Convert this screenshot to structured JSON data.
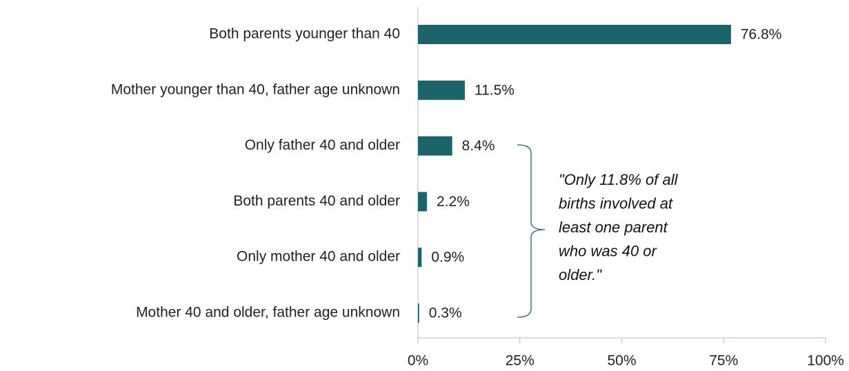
{
  "chart_data": {
    "type": "bar",
    "orientation": "horizontal",
    "categories": [
      "Both parents younger than 40",
      "Mother younger than 40, father age unknown",
      "Only father 40 and older",
      "Both parents 40 and older",
      "Only mother 40 and older",
      "Mother 40 and older, father age unknown"
    ],
    "values": [
      76.8,
      11.5,
      8.4,
      2.2,
      0.9,
      0.3
    ],
    "value_labels": [
      "76.8%",
      "11.5%",
      "8.4%",
      "2.2%",
      "0.9%",
      "0.3%"
    ],
    "color": "#1d636c",
    "xlim": [
      0,
      100
    ],
    "xticks": [
      {
        "value": 0,
        "label": "0%"
      },
      {
        "value": 25,
        "label": "25%"
      },
      {
        "value": 50,
        "label": "50%"
      },
      {
        "value": 75,
        "label": "75%"
      },
      {
        "value": 100,
        "label": "100%"
      }
    ],
    "annotation": [
      "\"Only 11.8% of all",
      "births involved at",
      "least one parent",
      "who was 40 or",
      "older.\""
    ]
  }
}
